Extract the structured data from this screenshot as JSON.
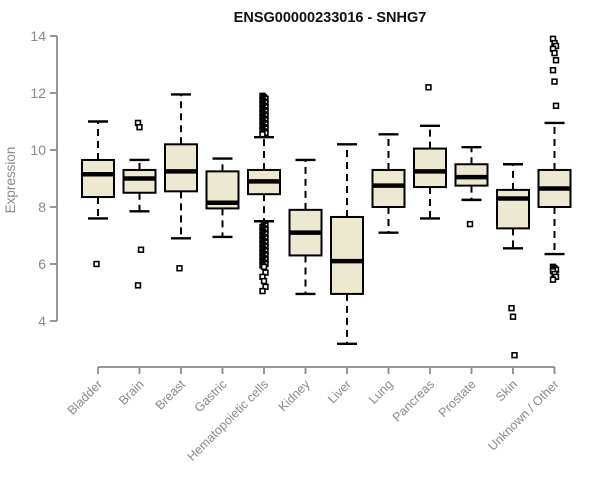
{
  "title": "ENSG00000233016 - SNHG7",
  "chart_data": {
    "type": "boxplot",
    "title": "ENSG00000233016 - SNHG7",
    "xlabel": "",
    "ylabel": "Expression",
    "y_ticks": [
      4,
      6,
      8,
      10,
      12,
      14
    ],
    "ylim": [
      4,
      14
    ],
    "grid": false,
    "legend": "none",
    "categories": [
      "Bladder",
      "Brain",
      "Breast",
      "Gastric",
      "Hematopoietic cells",
      "Kidney",
      "Liver",
      "Lung",
      "Pancreas",
      "Prostate",
      "Skin",
      "Unknown / Other"
    ],
    "series": [
      {
        "name": "Bladder",
        "whisker_low": 7.6,
        "q1": 8.35,
        "median": 9.15,
        "q3": 9.65,
        "whisker_high": 11.0,
        "outliers_high": [],
        "outliers_low": [
          6.0
        ]
      },
      {
        "name": "Brain",
        "whisker_low": 7.85,
        "q1": 8.5,
        "median": 9.0,
        "q3": 9.3,
        "whisker_high": 9.65,
        "outliers_high": [
          10.95,
          10.8
        ],
        "outliers_low": [
          6.5,
          5.25
        ]
      },
      {
        "name": "Breast",
        "whisker_low": 6.9,
        "q1": 8.55,
        "median": 9.25,
        "q3": 10.2,
        "whisker_high": 11.95,
        "outliers_high": [],
        "outliers_low": [
          5.85
        ]
      },
      {
        "name": "Gastric",
        "whisker_low": 6.95,
        "q1": 7.95,
        "median": 8.15,
        "q3": 9.25,
        "whisker_high": 9.7,
        "outliers_high": [],
        "outliers_low": []
      },
      {
        "name": "Hematopoietic cells",
        "whisker_low": 7.5,
        "q1": 8.45,
        "median": 8.9,
        "q3": 9.3,
        "whisker_high": 10.45,
        "outliers_high": [
          11.9,
          11.85,
          11.8,
          11.75,
          11.7,
          11.65,
          11.6,
          11.55,
          11.5,
          11.45,
          11.4,
          11.35,
          11.3,
          11.25,
          11.2,
          11.15,
          11.1,
          11.05,
          11.0,
          10.95,
          10.9,
          10.85,
          10.8,
          10.75,
          10.7,
          10.65,
          10.6,
          10.55
        ],
        "outliers_low": [
          7.4,
          7.35,
          7.3,
          7.25,
          7.2,
          7.15,
          7.1,
          7.05,
          7.0,
          6.95,
          6.9,
          6.85,
          6.8,
          6.75,
          6.7,
          6.65,
          6.6,
          6.55,
          6.5,
          6.45,
          6.4,
          6.35,
          6.3,
          6.25,
          6.2,
          6.15,
          6.1,
          6.05,
          6.0,
          5.95,
          5.9,
          5.7,
          5.55,
          5.4,
          5.2,
          5.05
        ]
      },
      {
        "name": "Kidney",
        "whisker_low": 4.95,
        "q1": 6.3,
        "median": 7.1,
        "q3": 7.9,
        "whisker_high": 9.65,
        "outliers_high": [],
        "outliers_low": []
      },
      {
        "name": "Liver",
        "whisker_low": 3.2,
        "q1": 4.95,
        "median": 6.1,
        "q3": 7.65,
        "whisker_high": 10.2,
        "outliers_high": [],
        "outliers_low": []
      },
      {
        "name": "Lung",
        "whisker_low": 7.1,
        "q1": 8.0,
        "median": 8.75,
        "q3": 9.3,
        "whisker_high": 10.55,
        "outliers_high": [],
        "outliers_low": []
      },
      {
        "name": "Pancreas",
        "whisker_low": 7.6,
        "q1": 8.7,
        "median": 9.25,
        "q3": 10.05,
        "whisker_high": 10.85,
        "outliers_high": [
          12.2
        ],
        "outliers_low": []
      },
      {
        "name": "Prostate",
        "whisker_low": 8.25,
        "q1": 8.75,
        "median": 9.05,
        "q3": 9.5,
        "whisker_high": 10.1,
        "outliers_high": [],
        "outliers_low": [
          7.4
        ]
      },
      {
        "name": "Skin",
        "whisker_low": 6.55,
        "q1": 7.25,
        "median": 8.3,
        "q3": 8.6,
        "whisker_high": 9.5,
        "outliers_high": [],
        "outliers_low": [
          4.45,
          4.15,
          2.8
        ]
      },
      {
        "name": "Unknown / Other",
        "whisker_low": 6.35,
        "q1": 8.0,
        "median": 8.65,
        "q3": 9.3,
        "whisker_high": 10.95,
        "outliers_high": [
          13.9,
          13.75,
          13.65,
          13.55,
          13.4,
          13.15,
          12.8,
          12.4,
          11.55
        ],
        "outliers_low": [
          5.9,
          5.85,
          5.8,
          5.75,
          5.65,
          5.55,
          5.45
        ]
      }
    ],
    "colors": {
      "box_fill": "#EDE8D0",
      "box_stroke": "#000000",
      "median": "#000000",
      "whisker": "#000000",
      "outlier": "#000000",
      "axis": "#8a8a8a",
      "tick_label": "#8a8a8a",
      "title": "#111111",
      "background": "#ffffff"
    }
  }
}
